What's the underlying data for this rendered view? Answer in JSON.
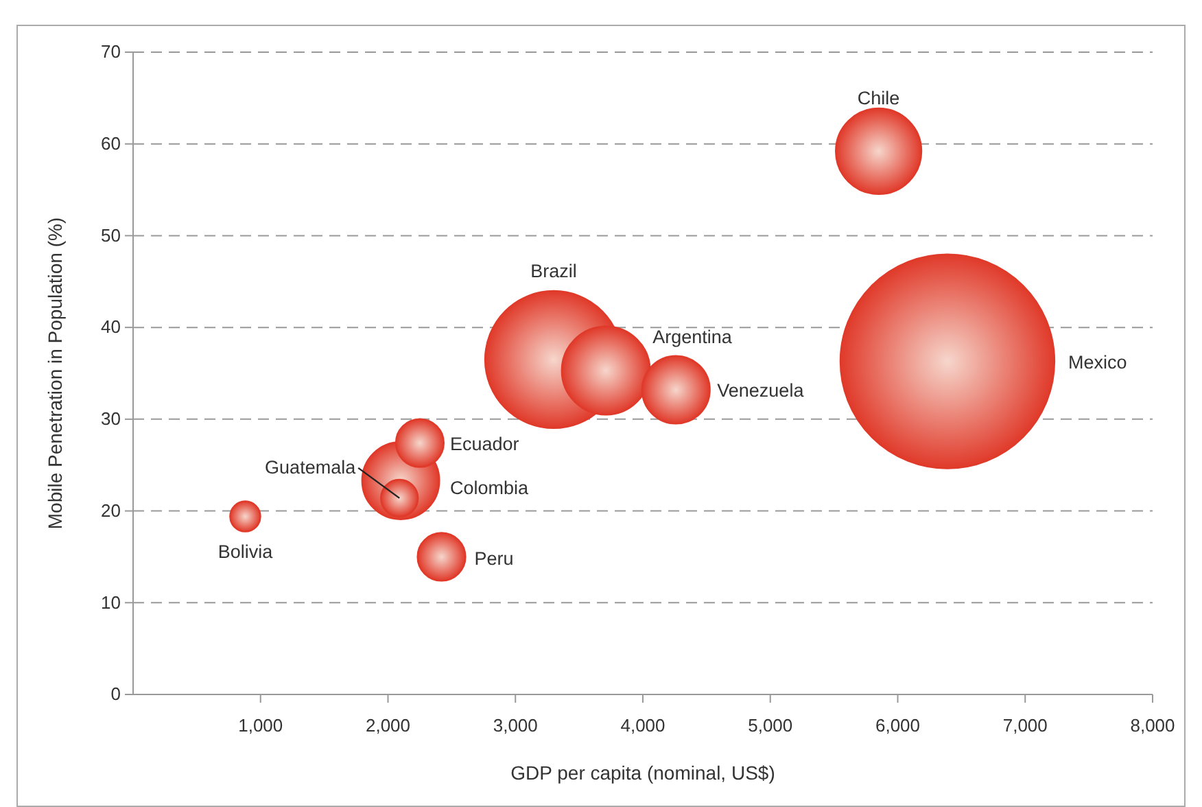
{
  "chart_data": {
    "type": "bubble",
    "xlabel": "GDP per capita (nominal, US$)",
    "ylabel": "Mobile Penetration in Population (%)",
    "x": [
      880,
      2090,
      2100,
      2250,
      2420,
      3300,
      3710,
      4260,
      5850,
      6390
    ],
    "series": [
      {
        "color": "#e03a2a",
        "values": [
          19.4,
          21.4,
          23.3,
          27.4,
          15,
          36.5,
          35.3,
          33.2,
          59.2,
          36.3
        ],
        "sizes": [
          0.02,
          0.03,
          0.13,
          0.05,
          0.05,
          0.41,
          0.17,
          0.1,
          0.16,
          1
        ]
      }
    ],
    "annotations": [
      "Bolivia",
      "Guatemala",
      "Colombia",
      "Ecuador",
      "Peru",
      "Brazil",
      "Argentina",
      "Venezuela",
      "Chile",
      "Mexico"
    ],
    "xlim": [
      0,
      8000
    ],
    "ylim": [
      0,
      70
    ],
    "xticks": [
      {
        "value": 1000,
        "label": "1,000"
      },
      {
        "value": 2000,
        "label": "2,000"
      },
      {
        "value": 3000,
        "label": "3,000"
      },
      {
        "value": 4000,
        "label": "4,000"
      },
      {
        "value": 5000,
        "label": "5,000"
      },
      {
        "value": 6000,
        "label": "6,000"
      },
      {
        "value": 7000,
        "label": "7,000"
      },
      {
        "value": 8000,
        "label": "8,000"
      }
    ],
    "yticks": [
      0,
      10,
      20,
      30,
      40,
      50,
      60,
      70
    ],
    "grid": "y"
  }
}
